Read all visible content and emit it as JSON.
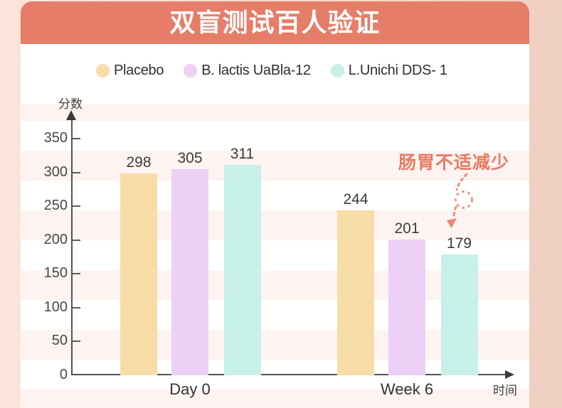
{
  "title": "双盲测试百人验证",
  "legend": [
    {
      "label": "Placebo",
      "color": "#f8dca8"
    },
    {
      "label": "B. lactis UaBla-12",
      "color": "#ecd0f5"
    },
    {
      "label": "L.Unichi DDS- 1",
      "color": "#c7f0e9"
    }
  ],
  "annotation": {
    "text": "肠胃不适减少",
    "color": "#e87a64"
  },
  "chart_data": {
    "type": "bar",
    "categories": [
      "Day 0",
      "Week 6"
    ],
    "series": [
      {
        "name": "Placebo",
        "color": "#f8dca8",
        "values": [
          298,
          244
        ]
      },
      {
        "name": "B. lactis UaBla-12",
        "color": "#ecd0f5",
        "values": [
          305,
          201
        ]
      },
      {
        "name": "L.Unichi DDS- 1",
        "color": "#c7f0e9",
        "values": [
          311,
          179
        ]
      }
    ],
    "xlabel": "时间",
    "ylabel": "分数",
    "ylim": [
      0,
      350
    ],
    "ytick_step": 50,
    "legend_position": "top",
    "grid": "striped-bands",
    "value_labels": true
  }
}
